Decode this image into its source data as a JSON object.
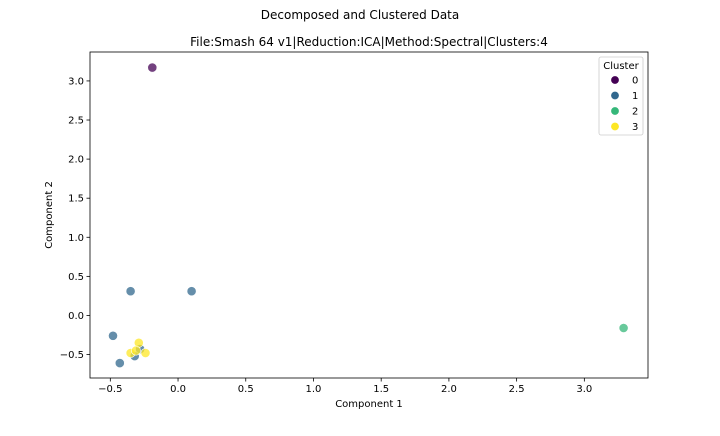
{
  "chart_data": {
    "type": "scatter",
    "suptitle": "Decomposed and Clustered Data",
    "title": "File:Smash 64 v1|Reduction:ICA|Method:Spectral|Clusters:4",
    "xlabel": "Component 1",
    "ylabel": "Component 2",
    "xlim": [
      -0.65,
      3.47
    ],
    "ylim": [
      -0.8,
      3.37
    ],
    "xticks": [
      -0.5,
      0.0,
      0.5,
      1.0,
      1.5,
      2.0,
      2.5,
      3.0
    ],
    "xtick_labels": [
      "−0.5",
      "0.0",
      "0.5",
      "1.0",
      "1.5",
      "2.0",
      "2.5",
      "3.0"
    ],
    "yticks": [
      -0.5,
      0.0,
      0.5,
      1.0,
      1.5,
      2.0,
      2.5,
      3.0
    ],
    "ytick_labels": [
      "−0.5",
      "0.0",
      "0.5",
      "1.0",
      "1.5",
      "2.0",
      "2.5",
      "3.0"
    ],
    "grid": false,
    "legend": {
      "title": "Cluster",
      "placement": "top-right",
      "entries": [
        {
          "label": "0",
          "color": "#440154"
        },
        {
          "label": "1",
          "color": "#31688e"
        },
        {
          "label": "2",
          "color": "#35b779"
        },
        {
          "label": "3",
          "color": "#fde725"
        }
      ]
    },
    "points": [
      {
        "x": -0.19,
        "y": 3.17,
        "cluster": 0
      },
      {
        "x": -0.35,
        "y": 0.31,
        "cluster": 1
      },
      {
        "x": 0.1,
        "y": 0.31,
        "cluster": 1
      },
      {
        "x": -0.48,
        "y": -0.26,
        "cluster": 1
      },
      {
        "x": -0.43,
        "y": -0.61,
        "cluster": 1
      },
      {
        "x": -0.32,
        "y": -0.52,
        "cluster": 1
      },
      {
        "x": -0.28,
        "y": -0.43,
        "cluster": 1
      },
      {
        "x": 3.29,
        "y": -0.16,
        "cluster": 2
      },
      {
        "x": -0.29,
        "y": -0.35,
        "cluster": 3
      },
      {
        "x": -0.24,
        "y": -0.48,
        "cluster": 3
      },
      {
        "x": -0.35,
        "y": -0.48,
        "cluster": 3
      },
      {
        "x": -0.31,
        "y": -0.45,
        "cluster": 3
      }
    ]
  }
}
